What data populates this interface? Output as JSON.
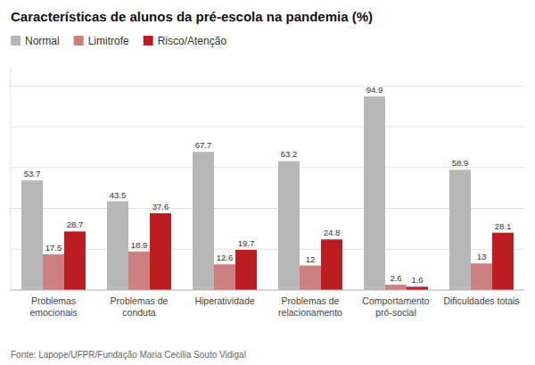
{
  "chart_data": {
    "type": "bar",
    "title": "Características de alunos da pré-escola na pandemia (%)",
    "categories": [
      "Problemas\nemocionais",
      "Problemas de\nconduta",
      "Hiperatividade",
      "Problemas de\nrelacionamento",
      "Comportamento\npró-social",
      "Dificuldades totais"
    ],
    "series": [
      {
        "name": "Normal",
        "color": "#b8b8b8",
        "values": [
          53.7,
          43.5,
          67.7,
          63.2,
          94.9,
          58.9
        ]
      },
      {
        "name": "Limitrofe",
        "color": "#cc8080",
        "values": [
          17.5,
          18.9,
          12.6,
          12.0,
          2.6,
          13.0
        ]
      },
      {
        "name": "Risco/Atenção",
        "color": "#bb1c22",
        "values": [
          28.7,
          37.6,
          19.7,
          24.8,
          1.6,
          28.1
        ]
      }
    ],
    "ylim": [
      0,
      108
    ],
    "yticks": [
      0,
      20,
      40,
      60,
      80,
      100
    ],
    "grid": true,
    "tick_labels": "x",
    "data_labels": true,
    "legend": "upper left",
    "annotations": [
      "Fonte: Lapope/UFPR/Fundação Maria Cecilia Souto Vidigal"
    ]
  }
}
